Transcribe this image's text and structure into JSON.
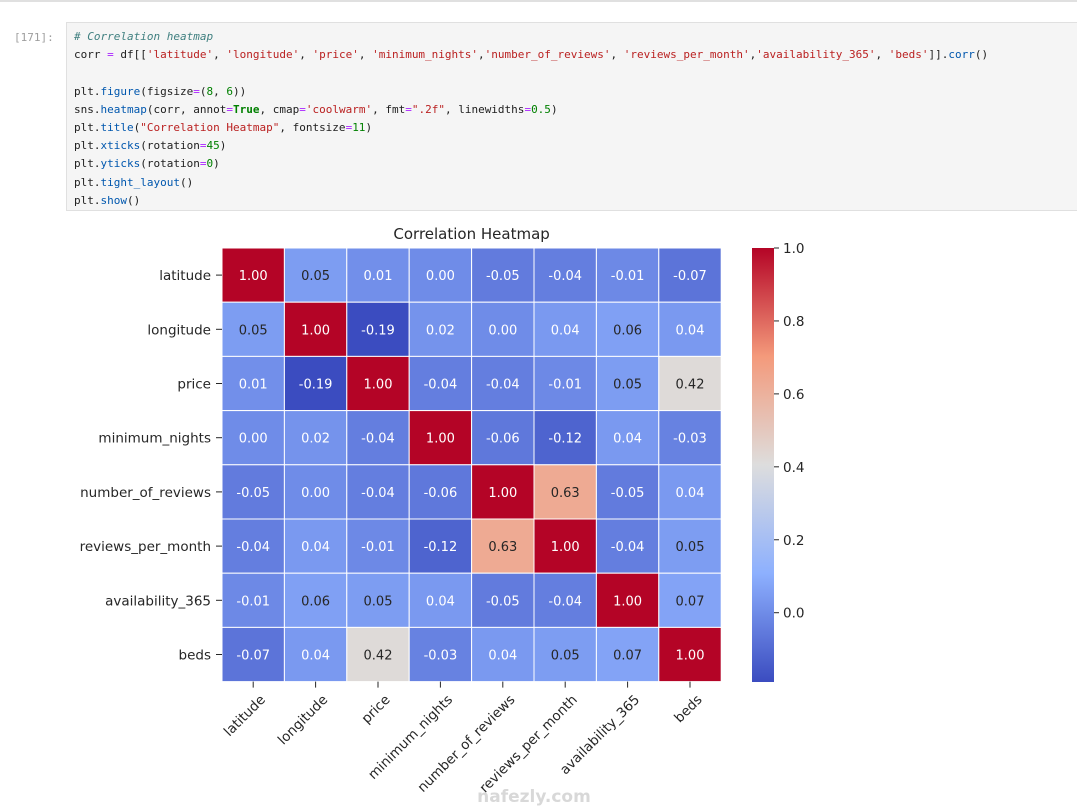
{
  "cell": {
    "prompt": "[171]:",
    "code_lines": [
      [
        [
          "# Correlation heatmap",
          "c-com"
        ]
      ],
      [
        [
          "corr ",
          ""
        ],
        [
          "=",
          "c-op"
        ],
        [
          " df[[",
          ""
        ],
        [
          "'latitude'",
          "c-str"
        ],
        [
          ", ",
          ""
        ],
        [
          "'longitude'",
          "c-str"
        ],
        [
          ", ",
          ""
        ],
        [
          "'price'",
          "c-str"
        ],
        [
          ", ",
          ""
        ],
        [
          "'minimum_nights'",
          "c-str"
        ],
        [
          ",",
          ""
        ],
        [
          "'number_of_reviews'",
          "c-str"
        ],
        [
          ", ",
          ""
        ],
        [
          "'reviews_per_month'",
          "c-str"
        ],
        [
          ",",
          ""
        ],
        [
          "'availability_365'",
          "c-str"
        ],
        [
          ", ",
          ""
        ],
        [
          "'beds'",
          "c-str"
        ],
        [
          "]].",
          ""
        ],
        [
          "corr",
          "c-fn"
        ],
        [
          "()",
          ""
        ]
      ],
      [
        [
          "",
          ""
        ]
      ],
      [
        [
          "plt.",
          ""
        ],
        [
          "figure",
          "c-fn"
        ],
        [
          "(figsize",
          ""
        ],
        [
          "=",
          "c-op"
        ],
        [
          "(",
          ""
        ],
        [
          "8",
          "c-num"
        ],
        [
          ", ",
          ""
        ],
        [
          "6",
          "c-num"
        ],
        [
          "))",
          ""
        ]
      ],
      [
        [
          "sns.",
          ""
        ],
        [
          "heatmap",
          "c-fn"
        ],
        [
          "(corr, annot",
          ""
        ],
        [
          "=",
          "c-op"
        ],
        [
          "True",
          "c-kw"
        ],
        [
          ", cmap",
          ""
        ],
        [
          "=",
          "c-op"
        ],
        [
          "'coolwarm'",
          "c-str"
        ],
        [
          ", fmt",
          ""
        ],
        [
          "=",
          "c-op"
        ],
        [
          "\".2f\"",
          "c-str"
        ],
        [
          ", linewidths",
          ""
        ],
        [
          "=",
          "c-op"
        ],
        [
          "0.5",
          "c-num"
        ],
        [
          ")",
          ""
        ]
      ],
      [
        [
          "plt.",
          ""
        ],
        [
          "title",
          "c-fn"
        ],
        [
          "(",
          ""
        ],
        [
          "\"Correlation Heatmap\"",
          "c-str"
        ],
        [
          ", fontsize",
          ""
        ],
        [
          "=",
          "c-op"
        ],
        [
          "11",
          "c-num"
        ],
        [
          ")",
          ""
        ]
      ],
      [
        [
          "plt.",
          ""
        ],
        [
          "xticks",
          "c-fn"
        ],
        [
          "(rotation",
          ""
        ],
        [
          "=",
          "c-op"
        ],
        [
          "45",
          "c-num"
        ],
        [
          ")",
          ""
        ]
      ],
      [
        [
          "plt.",
          ""
        ],
        [
          "yticks",
          "c-fn"
        ],
        [
          "(rotation",
          ""
        ],
        [
          "=",
          "c-op"
        ],
        [
          "0",
          "c-num"
        ],
        [
          ")",
          ""
        ]
      ],
      [
        [
          "plt.",
          ""
        ],
        [
          "tight_layout",
          "c-fn"
        ],
        [
          "()",
          ""
        ]
      ],
      [
        [
          "plt.",
          ""
        ],
        [
          "show",
          "c-fn"
        ],
        [
          "()",
          ""
        ]
      ]
    ]
  },
  "chart_data": {
    "type": "heatmap",
    "title": "Correlation Heatmap",
    "labels": [
      "latitude",
      "longitude",
      "price",
      "minimum_nights",
      "number_of_reviews",
      "reviews_per_month",
      "availability_365",
      "beds"
    ],
    "values": [
      [
        1.0,
        0.05,
        0.01,
        0.0,
        -0.05,
        -0.04,
        -0.01,
        -0.07
      ],
      [
        0.05,
        1.0,
        -0.19,
        0.02,
        0.0,
        0.04,
        0.06,
        0.04
      ],
      [
        0.01,
        -0.19,
        1.0,
        -0.04,
        -0.04,
        -0.01,
        0.05,
        0.42
      ],
      [
        0.0,
        0.02,
        -0.04,
        1.0,
        -0.06,
        -0.12,
        0.04,
        -0.03
      ],
      [
        -0.05,
        0.0,
        -0.04,
        -0.06,
        1.0,
        0.63,
        -0.05,
        0.04
      ],
      [
        -0.04,
        0.04,
        -0.01,
        -0.12,
        0.63,
        1.0,
        -0.04,
        0.05
      ],
      [
        -0.01,
        0.06,
        0.05,
        0.04,
        -0.05,
        -0.04,
        1.0,
        0.07
      ],
      [
        -0.07,
        0.04,
        0.42,
        -0.03,
        0.04,
        0.05,
        0.07,
        1.0
      ]
    ],
    "vmin": -0.19,
    "vmax": 1.0,
    "cmap": "coolwarm",
    "colorbar_ticks": [
      "1.0",
      "0.8",
      "0.6",
      "0.4",
      "0.2",
      "0.0"
    ],
    "xtick_rotation": 45
  },
  "watermark": "nafezly.com"
}
